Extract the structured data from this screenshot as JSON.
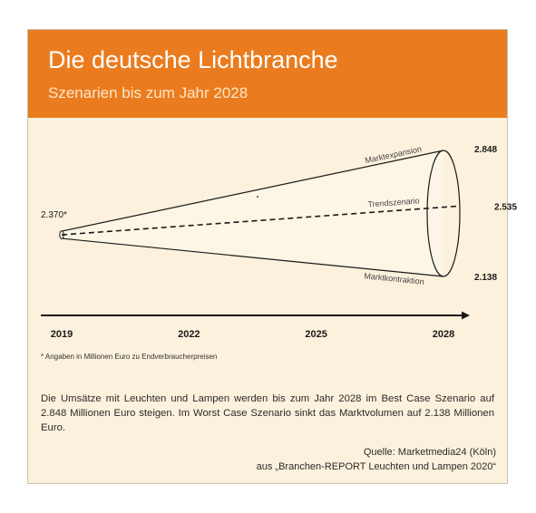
{
  "header": {
    "title": "Die deutsche Lichtbranche",
    "subtitle": "Szenarien bis zum Jahr 2028"
  },
  "chart_data": {
    "type": "line",
    "x_ticks": [
      "2019",
      "2022",
      "2025",
      "2028"
    ],
    "start": {
      "year": 2019,
      "label": "2.370*",
      "value": 2370
    },
    "series": [
      {
        "name": "Marktexpansion",
        "end_year": 2028,
        "end_value": 2848,
        "end_label": "2.848"
      },
      {
        "name": "Trendszenario",
        "end_year": 2028,
        "end_value": 2535,
        "end_label": "2.535"
      },
      {
        "name": "Marktkontraktion",
        "end_year": 2028,
        "end_value": 2138,
        "end_label": "2.138"
      }
    ]
  },
  "footnote": "* Angaben in Millionen Euro zu Endverbraucherpreisen",
  "body": "Die Umsätze mit Leuchten und Lampen werden bis zum Jahr 2028 im Best Case Szenario auf 2.848 Millionen Euro steigen. Im Worst Case Szenario sinkt das Marktvolumen auf 2.138 Millionen Euro.",
  "source": {
    "line1": "Quelle: Marketmedia24 (Köln)",
    "line2": "aus „Branchen-REPORT Leuchten und Lampen 2020“"
  },
  "colors": {
    "accent": "#ea7c1f",
    "background": "#fcf1dc",
    "funnel_fill": "#fdf6e6",
    "ink": "#1a1a1a"
  }
}
